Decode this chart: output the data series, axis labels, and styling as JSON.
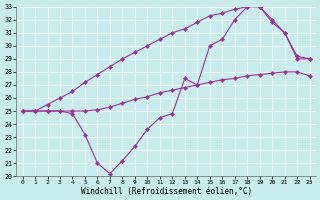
{
  "xlabel": "Windchill (Refroidissement éolien,°C)",
  "xlim": [
    -0.5,
    23.5
  ],
  "ylim": [
    20,
    33
  ],
  "xticks": [
    0,
    1,
    2,
    3,
    4,
    5,
    6,
    7,
    8,
    9,
    10,
    11,
    12,
    13,
    14,
    15,
    16,
    17,
    18,
    19,
    20,
    21,
    22,
    23
  ],
  "yticks": [
    20,
    21,
    22,
    23,
    24,
    25,
    26,
    27,
    28,
    29,
    30,
    31,
    32,
    33
  ],
  "bg_color": "#c8ecec",
  "line_color": "#993399",
  "line1_x": [
    0,
    1,
    2,
    3,
    4,
    5,
    6,
    7,
    8,
    9,
    10,
    11,
    12,
    13,
    14,
    15,
    16,
    17,
    18,
    19,
    20,
    21,
    22,
    23
  ],
  "line1_y": [
    25.0,
    25.0,
    25.0,
    25.0,
    25.0,
    25.0,
    25.1,
    25.3,
    25.6,
    25.9,
    26.1,
    26.4,
    26.6,
    26.8,
    27.0,
    27.2,
    27.4,
    27.5,
    27.7,
    27.8,
    27.9,
    28.0,
    28.0,
    27.7
  ],
  "line2_x": [
    0,
    1,
    2,
    3,
    4,
    5,
    6,
    7,
    8,
    9,
    10,
    11,
    12,
    13,
    14,
    15,
    16,
    17,
    18,
    19,
    20,
    21,
    22,
    23
  ],
  "line2_y": [
    25.0,
    25.0,
    25.0,
    25.0,
    24.8,
    23.2,
    21.0,
    20.2,
    21.2,
    22.3,
    23.6,
    24.5,
    24.8,
    27.5,
    27.0,
    30.0,
    30.5,
    32.0,
    33.0,
    33.0,
    31.8,
    31.0,
    29.0,
    29.0
  ],
  "line3_x": [
    0,
    1,
    2,
    3,
    4,
    5,
    6,
    7,
    8,
    9,
    10,
    11,
    12,
    13,
    14,
    15,
    16,
    17,
    18,
    19,
    20,
    21,
    22,
    23
  ],
  "line3_y": [
    25.0,
    25.0,
    25.5,
    26.0,
    26.5,
    27.2,
    27.8,
    28.4,
    29.0,
    29.5,
    30.0,
    30.5,
    31.0,
    31.3,
    31.8,
    32.3,
    32.5,
    32.8,
    33.0,
    33.0,
    32.0,
    31.0,
    29.2,
    29.0
  ]
}
